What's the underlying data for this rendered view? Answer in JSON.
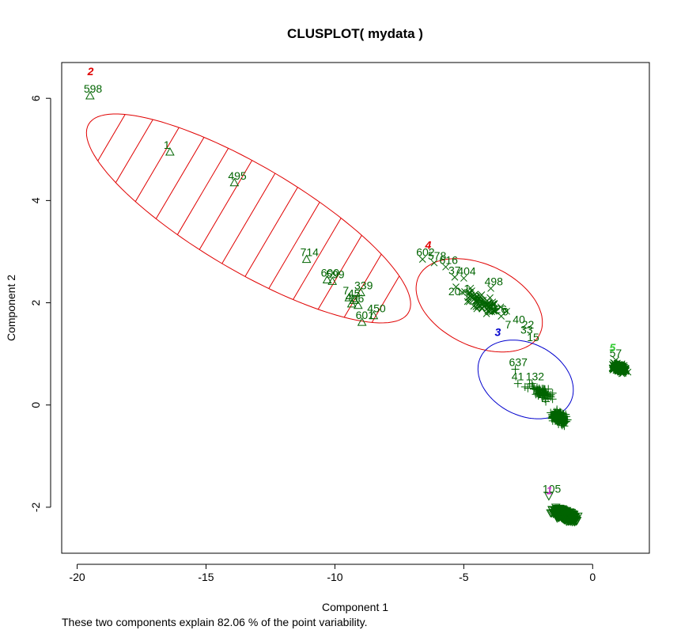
{
  "chart_data": {
    "type": "scatter",
    "title": "CLUSPLOT( mydata )",
    "xlabel": "Component 1",
    "ylabel": "Component 2",
    "xlim": [
      -20.6,
      2.2
    ],
    "ylim": [
      -2.9,
      6.7
    ],
    "x_ticks": [
      -20,
      -15,
      -10,
      -5,
      0
    ],
    "x_tick_labels": [
      "-20",
      "-15",
      "-10",
      "-5",
      "0"
    ],
    "y_ticks": [
      -2,
      0,
      2,
      4,
      6
    ],
    "y_tick_labels": [
      "-2",
      "0",
      "2",
      "4",
      "6"
    ],
    "footer": "These two components explain 82.06 % of the point variability.",
    "colors": {
      "points": "#006400",
      "ellipse_red": "#FF0000",
      "ellipse_blue": "#0000CD",
      "cluster1": "#CC33CC",
      "cluster5": "#33CC33"
    },
    "clusters": [
      {
        "id": "2",
        "label_pos": [
          -19.6,
          6.45
        ],
        "color": "#E00000",
        "ellipse": {
          "cx": -13.35,
          "cy": 3.65,
          "a": 7.2,
          "b": 0.32,
          "angle_deg": -30.5,
          "color": "#E00000",
          "shade_lines": true
        }
      },
      {
        "id": "4",
        "label_pos": [
          -6.5,
          3.05
        ],
        "color": "#E00000",
        "ellipse": {
          "cx": -4.4,
          "cy": 1.95,
          "a": 2.6,
          "b": 0.25,
          "angle_deg": -25,
          "color": "#E00000"
        }
      },
      {
        "id": "3",
        "label_pos": [
          -3.8,
          1.35
        ],
        "color": "#0000CD",
        "ellipse": {
          "cx": -2.6,
          "cy": 0.5,
          "a": 1.95,
          "b": 0.22,
          "angle_deg": -27,
          "color": "#0000CD"
        }
      },
      {
        "id": "1",
        "label_pos": [
          -1.8,
          -1.75
        ],
        "color": "#CC33CC"
      },
      {
        "id": "5",
        "label_pos": [
          0.65,
          1.05
        ],
        "color": "#33CC33"
      }
    ],
    "labeled_points": [
      {
        "label": "598",
        "x": -19.5,
        "y": 6.05,
        "marker": "triangle"
      },
      {
        "label": "1",
        "x": -16.4,
        "y": 4.95,
        "marker": "triangle"
      },
      {
        "label": "495",
        "x": -13.9,
        "y": 4.35,
        "marker": "triangle"
      },
      {
        "label": "714",
        "x": -11.1,
        "y": 2.85,
        "marker": "triangle"
      },
      {
        "label": "600",
        "x": -10.3,
        "y": 2.45,
        "marker": "triangle"
      },
      {
        "label": "599",
        "x": -10.1,
        "y": 2.42,
        "marker": "triangle"
      },
      {
        "label": "339",
        "x": -9.0,
        "y": 2.2,
        "marker": "triangle"
      },
      {
        "label": "7",
        "x": -9.45,
        "y": 2.1,
        "marker": "triangle"
      },
      {
        "label": "45",
        "x": -9.25,
        "y": 2.05,
        "marker": "triangle"
      },
      {
        "label": "4",
        "x": -9.35,
        "y": 1.98,
        "marker": "triangle"
      },
      {
        "label": "96",
        "x": -9.1,
        "y": 1.95,
        "marker": "triangle"
      },
      {
        "label": "450",
        "x": -8.5,
        "y": 1.75,
        "marker": "triangle"
      },
      {
        "label": "601",
        "x": -8.95,
        "y": 1.62,
        "marker": "triangle"
      },
      {
        "label": "602",
        "x": -6.6,
        "y": 2.85,
        "marker": "x"
      },
      {
        "label": "578",
        "x": -6.15,
        "y": 2.78,
        "marker": "x"
      },
      {
        "label": "616",
        "x": -5.7,
        "y": 2.7,
        "marker": "x"
      },
      {
        "label": "37",
        "x": -5.35,
        "y": 2.5,
        "marker": "x"
      },
      {
        "label": "404",
        "x": -5.0,
        "y": 2.48,
        "marker": "x"
      },
      {
        "label": "498",
        "x": -3.95,
        "y": 2.28,
        "marker": "x"
      },
      {
        "label": "637",
        "x": -3.0,
        "y": 0.7,
        "marker": "plus"
      },
      {
        "label": "41",
        "x": -2.9,
        "y": 0.42,
        "marker": "plus"
      },
      {
        "label": "132",
        "x": -2.35,
        "y": 0.42,
        "marker": "plus"
      },
      {
        "label": "105",
        "x": -1.7,
        "y": -1.78,
        "marker": "triangle_down"
      },
      {
        "label": "57",
        "x": 0.9,
        "y": 0.88,
        "marker": "x"
      }
    ],
    "point_clouds": [
      {
        "cluster": "4",
        "marker": "x",
        "center": [
          -4.3,
          2.0
        ],
        "spread_along": 1.6,
        "spread_across": 0.18,
        "angle_deg": -25,
        "count": 70
      },
      {
        "cluster": "3",
        "marker": "plus",
        "center": [
          -2.0,
          0.25
        ],
        "spread_along": 0.9,
        "spread_across": 0.12,
        "angle_deg": -27,
        "count": 60
      },
      {
        "cluster": "3",
        "marker": "plus",
        "center": [
          -1.3,
          -0.25
        ],
        "spread_along": 0.55,
        "spread_across": 0.12,
        "angle_deg": -27,
        "count": 160
      },
      {
        "cluster": "1",
        "marker": "triangle_down",
        "center": [
          -1.1,
          -2.15
        ],
        "spread_along": 0.75,
        "spread_across": 0.12,
        "angle_deg": -22,
        "count": 400
      },
      {
        "cluster": "5",
        "marker": "x",
        "center": [
          1.05,
          0.72
        ],
        "spread_along": 0.45,
        "spread_across": 0.08,
        "angle_deg": -22,
        "count": 300
      }
    ],
    "cloud_labels": [
      {
        "text": "20",
        "x": -5.6,
        "y": 2.15
      },
      {
        "text": "1",
        "x": -5.0,
        "y": 2.2
      },
      {
        "text": "3",
        "x": -4.6,
        "y": 2.05
      },
      {
        "text": "44",
        "x": -4.2,
        "y": 1.85
      },
      {
        "text": "26",
        "x": -3.8,
        "y": 1.8
      },
      {
        "text": "9",
        "x": -3.5,
        "y": 1.75
      },
      {
        "text": "40",
        "x": -3.1,
        "y": 1.6
      },
      {
        "text": "22",
        "x": -2.75,
        "y": 1.5
      },
      {
        "text": "33",
        "x": -2.8,
        "y": 1.4
      },
      {
        "text": "15",
        "x": -2.55,
        "y": 1.25
      },
      {
        "text": "7",
        "x": -3.4,
        "y": 1.5
      }
    ]
  }
}
